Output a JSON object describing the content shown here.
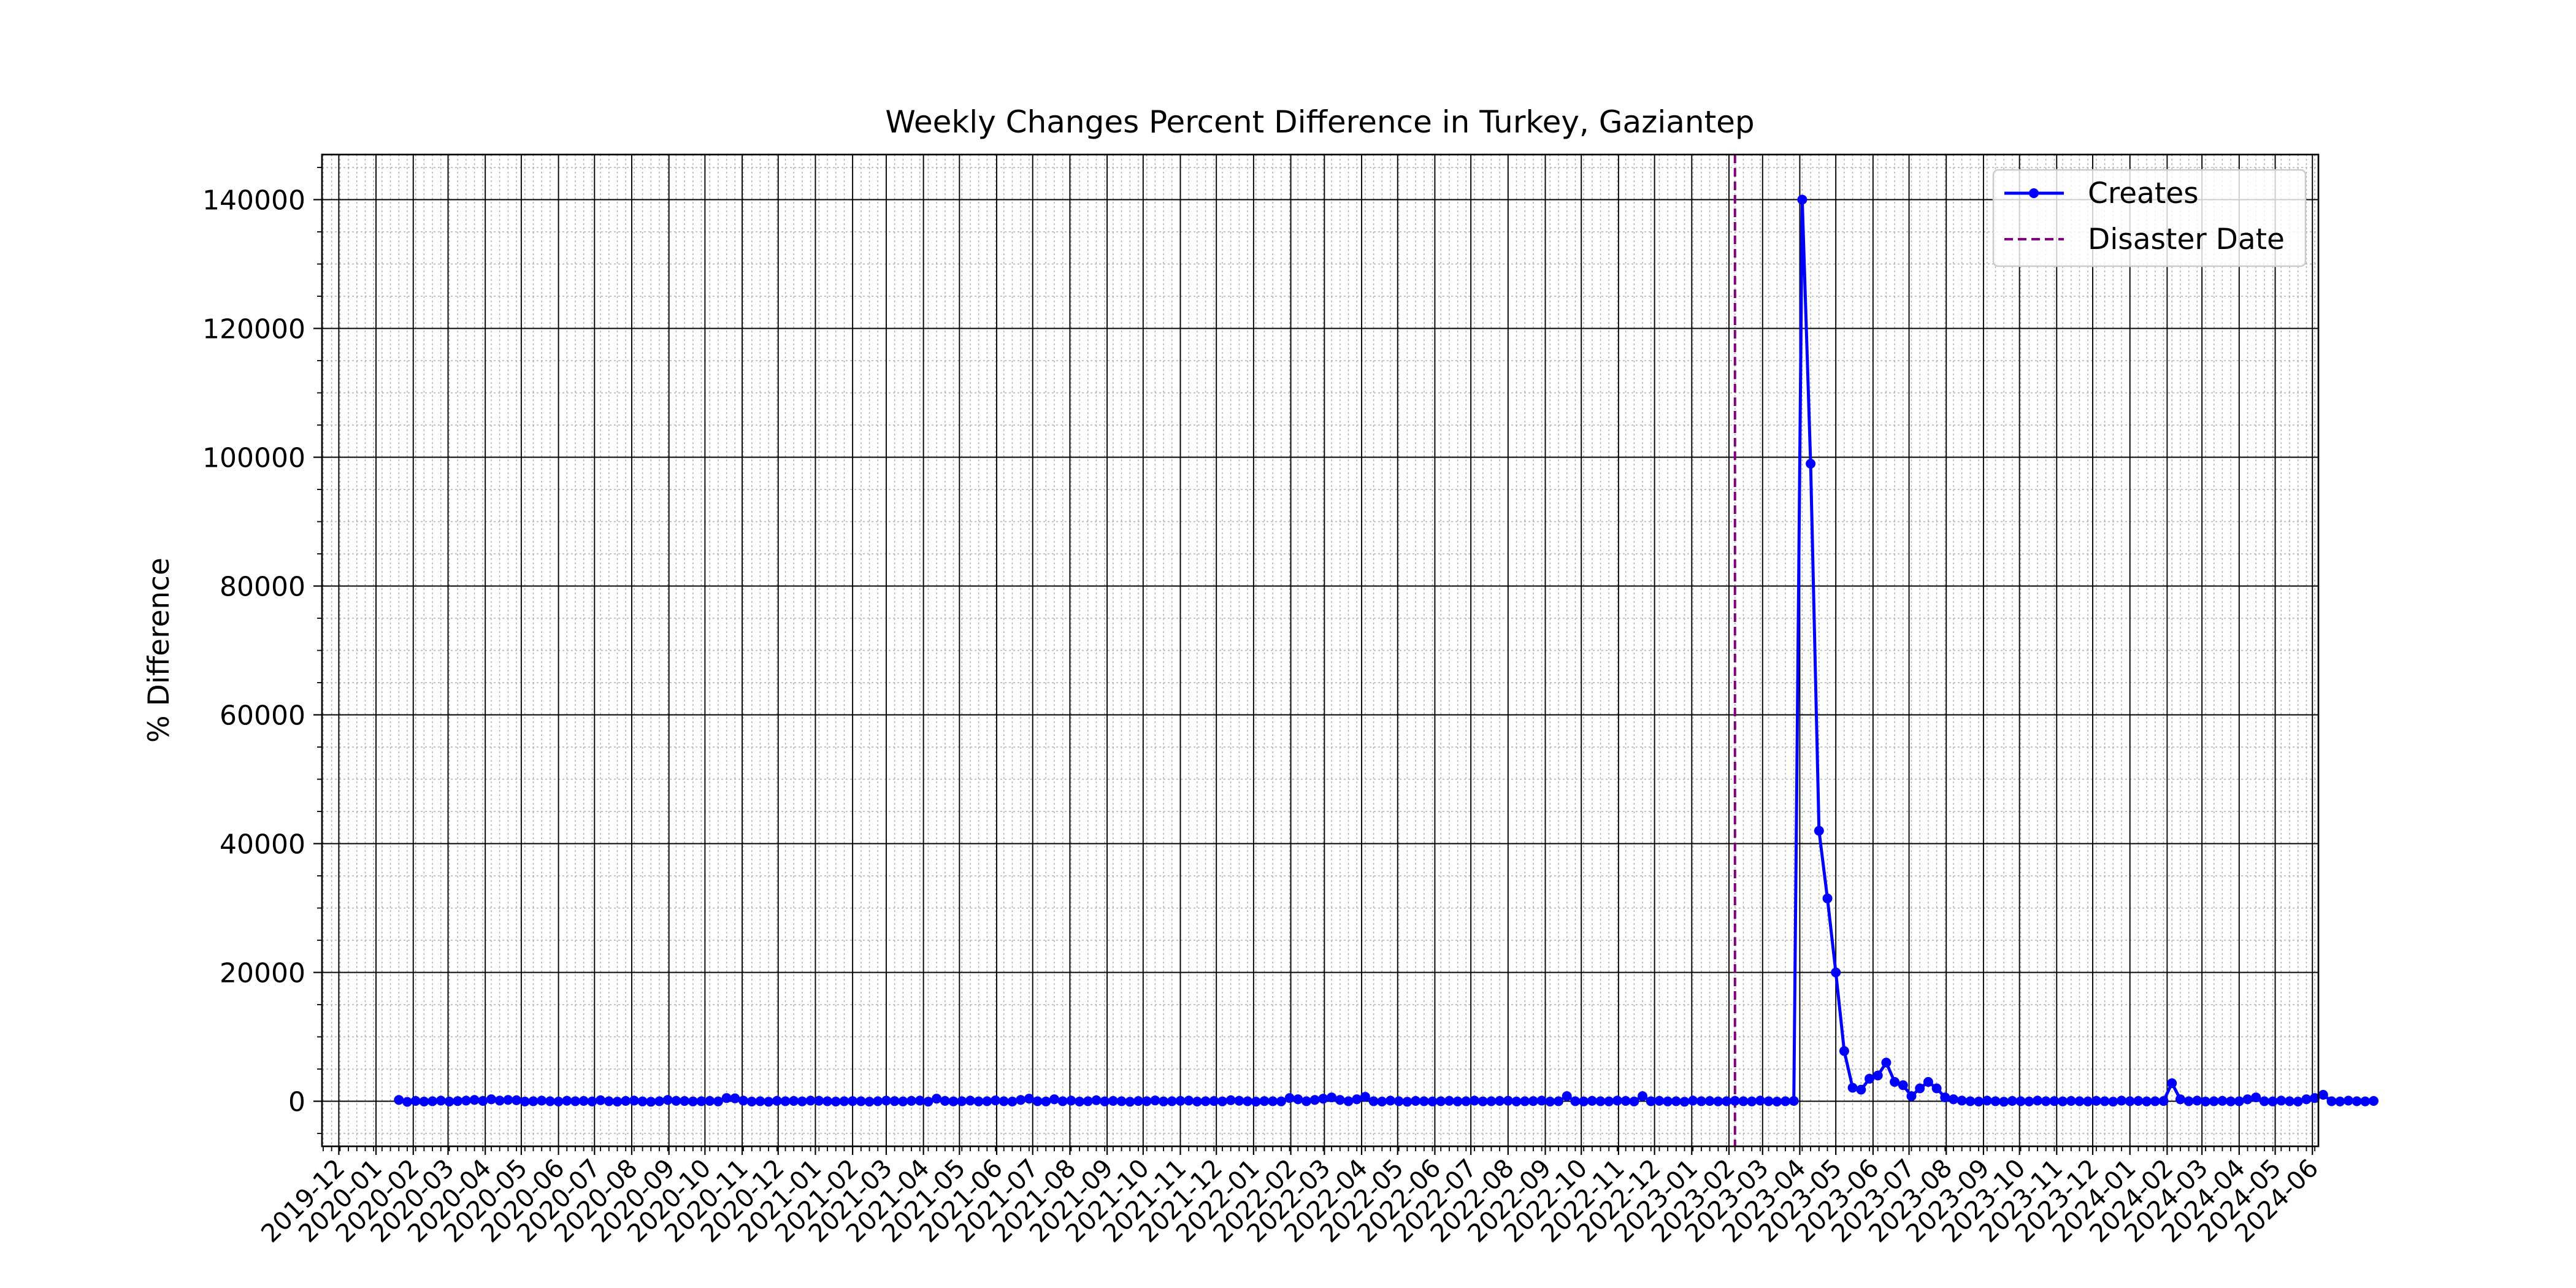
{
  "chart_data": {
    "type": "line",
    "title": "Weekly Changes Percent Difference in Turkey, Gaziantep",
    "xlabel": "",
    "ylabel": "% Difference",
    "xlim": [
      "2019-11-17",
      "2024-06-06"
    ],
    "ylim": [
      -7000,
      147000
    ],
    "yticks": [
      0,
      20000,
      40000,
      60000,
      80000,
      100000,
      120000,
      140000
    ],
    "xticks": [
      "2019-12",
      "2020-01",
      "2020-02",
      "2020-03",
      "2020-04",
      "2020-05",
      "2020-06",
      "2020-07",
      "2020-08",
      "2020-09",
      "2020-10",
      "2020-11",
      "2020-12",
      "2021-01",
      "2021-02",
      "2021-03",
      "2021-04",
      "2021-05",
      "2021-06",
      "2021-07",
      "2021-08",
      "2021-09",
      "2021-10",
      "2021-11",
      "2021-12",
      "2022-01",
      "2022-02",
      "2022-03",
      "2022-04",
      "2022-05",
      "2022-06",
      "2022-07",
      "2022-08",
      "2022-09",
      "2022-10",
      "2022-11",
      "2022-12",
      "2023-01",
      "2023-02",
      "2023-03",
      "2023-04",
      "2023-05",
      "2023-06",
      "2023-07",
      "2023-08",
      "2023-09",
      "2023-10",
      "2023-11",
      "2023-12",
      "2024-01",
      "2024-02",
      "2024-03",
      "2024-04",
      "2024-05",
      "2024-06"
    ],
    "grid": true,
    "legend": {
      "placement": "top-right"
    },
    "series": [
      {
        "name": "Creates",
        "color": "#0000ff",
        "marker": "circle",
        "start_date": "2020-01-20",
        "interval_days": 7,
        "values": [
          200,
          -100,
          50,
          -50,
          0,
          100,
          -50,
          30,
          100,
          200,
          50,
          300,
          100,
          200,
          150,
          -50,
          0,
          100,
          0,
          -50,
          80,
          0,
          50,
          -40,
          150,
          0,
          -60,
          50,
          100,
          -30,
          -80,
          0,
          200,
          60,
          40,
          -30,
          0,
          50,
          -30,
          500,
          450,
          100,
          -50,
          0,
          -80,
          60,
          0,
          50,
          -20,
          100,
          80,
          0,
          -50,
          0,
          30,
          0,
          -60,
          0,
          100,
          20,
          -30,
          60,
          100,
          -60,
          400,
          50,
          -20,
          0,
          100,
          -30,
          0,
          120,
          0,
          -50,
          200,
          400,
          0,
          -40,
          300,
          0,
          100,
          -50,
          0,
          150,
          -30,
          50,
          0,
          -80,
          40,
          0,
          120,
          -30,
          0,
          60,
          100,
          -50,
          0,
          40,
          -20,
          150,
          80,
          0,
          -60,
          30,
          0,
          -20,
          500,
          300,
          0,
          200,
          400,
          600,
          200,
          0,
          300,
          700,
          0,
          -50,
          100,
          0,
          -80,
          50,
          0,
          -40,
          0,
          60,
          -30,
          0,
          100,
          -20,
          0,
          50,
          80,
          -40,
          0,
          30,
          100,
          -50,
          0,
          800,
          0,
          -30,
          60,
          0,
          -20,
          100,
          50,
          -40,
          800,
          0,
          60,
          -30,
          0,
          -80,
          100,
          0,
          40,
          -20,
          0,
          60,
          0,
          -30,
          100,
          0,
          -50,
          0,
          50,
          140000,
          99000,
          42000,
          31500,
          20000,
          7800,
          2100,
          1800,
          3500,
          4000,
          6000,
          3000,
          2500,
          800,
          2000,
          3000,
          2000,
          600,
          300,
          100,
          0,
          -50,
          100,
          0,
          -80,
          50,
          0,
          -40,
          100,
          0,
          30,
          -20,
          50,
          0,
          -30,
          60,
          0,
          -60,
          100,
          0,
          50,
          -30,
          0,
          40,
          2800,
          300,
          0,
          100,
          -50,
          0,
          60,
          -20,
          0,
          300,
          600,
          0,
          -30,
          100,
          0,
          -50,
          300,
          500,
          1000,
          0,
          -40,
          100,
          0,
          -20,
          50
        ]
      }
    ],
    "reference_lines": [
      {
        "name": "Disaster Date",
        "x": "2023-02-06",
        "color": "#800080",
        "style": "dashed"
      }
    ]
  }
}
